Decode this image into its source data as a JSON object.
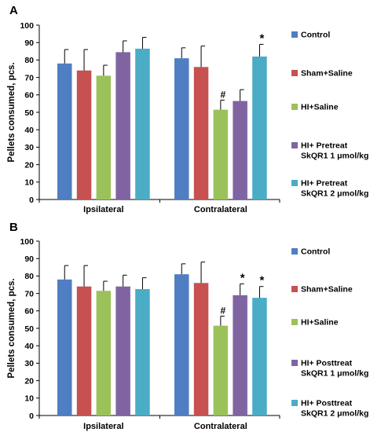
{
  "chart_data": [
    {
      "type": "bar",
      "panel_label": "A",
      "ylabel": "Pellets consumed, pcs.",
      "ylim": [
        0,
        100
      ],
      "yticks": [
        0,
        10,
        20,
        30,
        40,
        50,
        60,
        70,
        80,
        90,
        100
      ],
      "grid": false,
      "legend_position": "right",
      "categories": [
        "Ipsilateral",
        "Contralateral"
      ],
      "series": [
        {
          "name": "Control",
          "color": "#4F7EC2",
          "values": [
            78,
            81
          ],
          "errors": [
            8,
            6
          ],
          "annotations": [
            "",
            ""
          ]
        },
        {
          "name": "Sham+Saline",
          "color": "#C65150",
          "values": [
            74,
            76
          ],
          "errors": [
            12,
            12
          ],
          "annotations": [
            "",
            ""
          ]
        },
        {
          "name": "HI+Saline",
          "color": "#9BC25A",
          "values": [
            71,
            51.5
          ],
          "errors": [
            6,
            5.5
          ],
          "annotations": [
            "",
            "#"
          ]
        },
        {
          "name": "HI+ Pretreat SkQR1 1 μmol/kg",
          "color": "#8064A2",
          "values": [
            84.5,
            56.5
          ],
          "errors": [
            6.5,
            6.5
          ],
          "annotations": [
            "",
            ""
          ]
        },
        {
          "name": "HI+ Pretreat SkQR1 2 μmol/kg",
          "color": "#4BACC6",
          "values": [
            86.5,
            82
          ],
          "errors": [
            6.5,
            7
          ],
          "annotations": [
            "",
            "*"
          ]
        }
      ]
    },
    {
      "type": "bar",
      "panel_label": "B",
      "ylabel": "Pellets consumed, pcs.",
      "ylim": [
        0,
        100
      ],
      "yticks": [
        0,
        10,
        20,
        30,
        40,
        50,
        60,
        70,
        80,
        90,
        100
      ],
      "grid": false,
      "legend_position": "right",
      "categories": [
        "Ipsilateral",
        "Contralateral"
      ],
      "series": [
        {
          "name": "Control",
          "color": "#4F7EC2",
          "values": [
            78,
            81
          ],
          "errors": [
            8,
            6
          ],
          "annotations": [
            "",
            ""
          ]
        },
        {
          "name": "Sham+Saline",
          "color": "#C65150",
          "values": [
            74,
            76
          ],
          "errors": [
            12,
            12
          ],
          "annotations": [
            "",
            ""
          ]
        },
        {
          "name": "HI+Saline",
          "color": "#9BC25A",
          "values": [
            71.5,
            51.5
          ],
          "errors": [
            5.5,
            5.5
          ],
          "annotations": [
            "",
            "#"
          ]
        },
        {
          "name": "HI+ Posttreat SkQR1 1 μmol/kg",
          "color": "#8064A2",
          "values": [
            74,
            69
          ],
          "errors": [
            6.5,
            6.5
          ],
          "annotations": [
            "",
            "*"
          ]
        },
        {
          "name": "HI+ Posttreat SkQR1 2 μmol/kg",
          "color": "#4BACC6",
          "values": [
            72.5,
            67.5
          ],
          "errors": [
            6.5,
            6.5
          ],
          "annotations": [
            "",
            "*"
          ]
        }
      ]
    }
  ]
}
